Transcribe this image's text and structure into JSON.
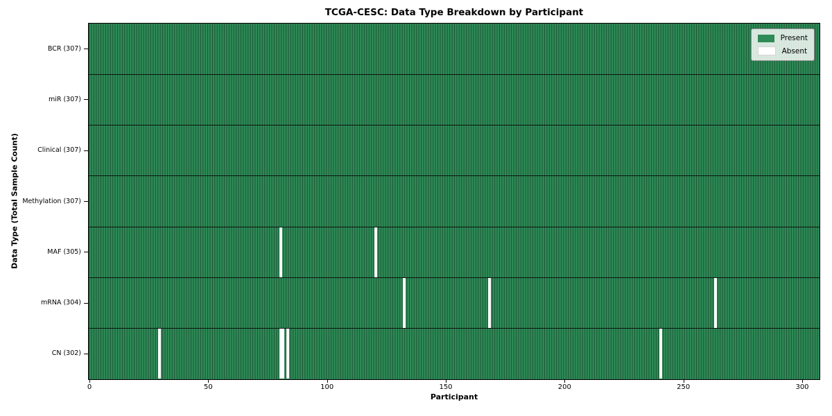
{
  "chart_data": {
    "type": "heatmap",
    "title": "TCGA-CESC: Data Type Breakdown by Participant",
    "xlabel": "Participant",
    "ylabel": "Data Type (Total Sample Count)",
    "x_ticks": [
      0,
      50,
      100,
      150,
      200,
      250,
      300
    ],
    "x_axis_range": [
      0,
      307
    ],
    "n_participants": 307,
    "grid": false,
    "legend_position": "upper right",
    "rows": [
      {
        "label": "BCR (307)",
        "data_type": "BCR",
        "total": 307,
        "absent_participants": []
      },
      {
        "label": "miR (307)",
        "data_type": "miR",
        "total": 307,
        "absent_participants": []
      },
      {
        "label": "Clinical (307)",
        "data_type": "Clinical",
        "total": 307,
        "absent_participants": []
      },
      {
        "label": "Methylation (307)",
        "data_type": "Methylation",
        "total": 307,
        "absent_participants": []
      },
      {
        "label": "MAF (305)",
        "data_type": "MAF",
        "total": 305,
        "absent_participants": [
          80,
          120
        ]
      },
      {
        "label": "mRNA (304)",
        "data_type": "mRNA",
        "total": 304,
        "absent_participants": [
          132,
          168,
          263
        ]
      },
      {
        "label": "CN (302)",
        "data_type": "CN",
        "total": 302,
        "absent_participants": [
          29,
          80,
          81,
          83,
          240
        ]
      }
    ],
    "legend": [
      {
        "label": "Present",
        "value": "present"
      },
      {
        "label": "Absent",
        "value": "absent"
      }
    ],
    "colors": {
      "present": "#2e8b57",
      "absent": "#ffffff",
      "cell_edge": "#1c5434",
      "row_separator": "#0a140d",
      "plot_border": "#000000"
    }
  }
}
